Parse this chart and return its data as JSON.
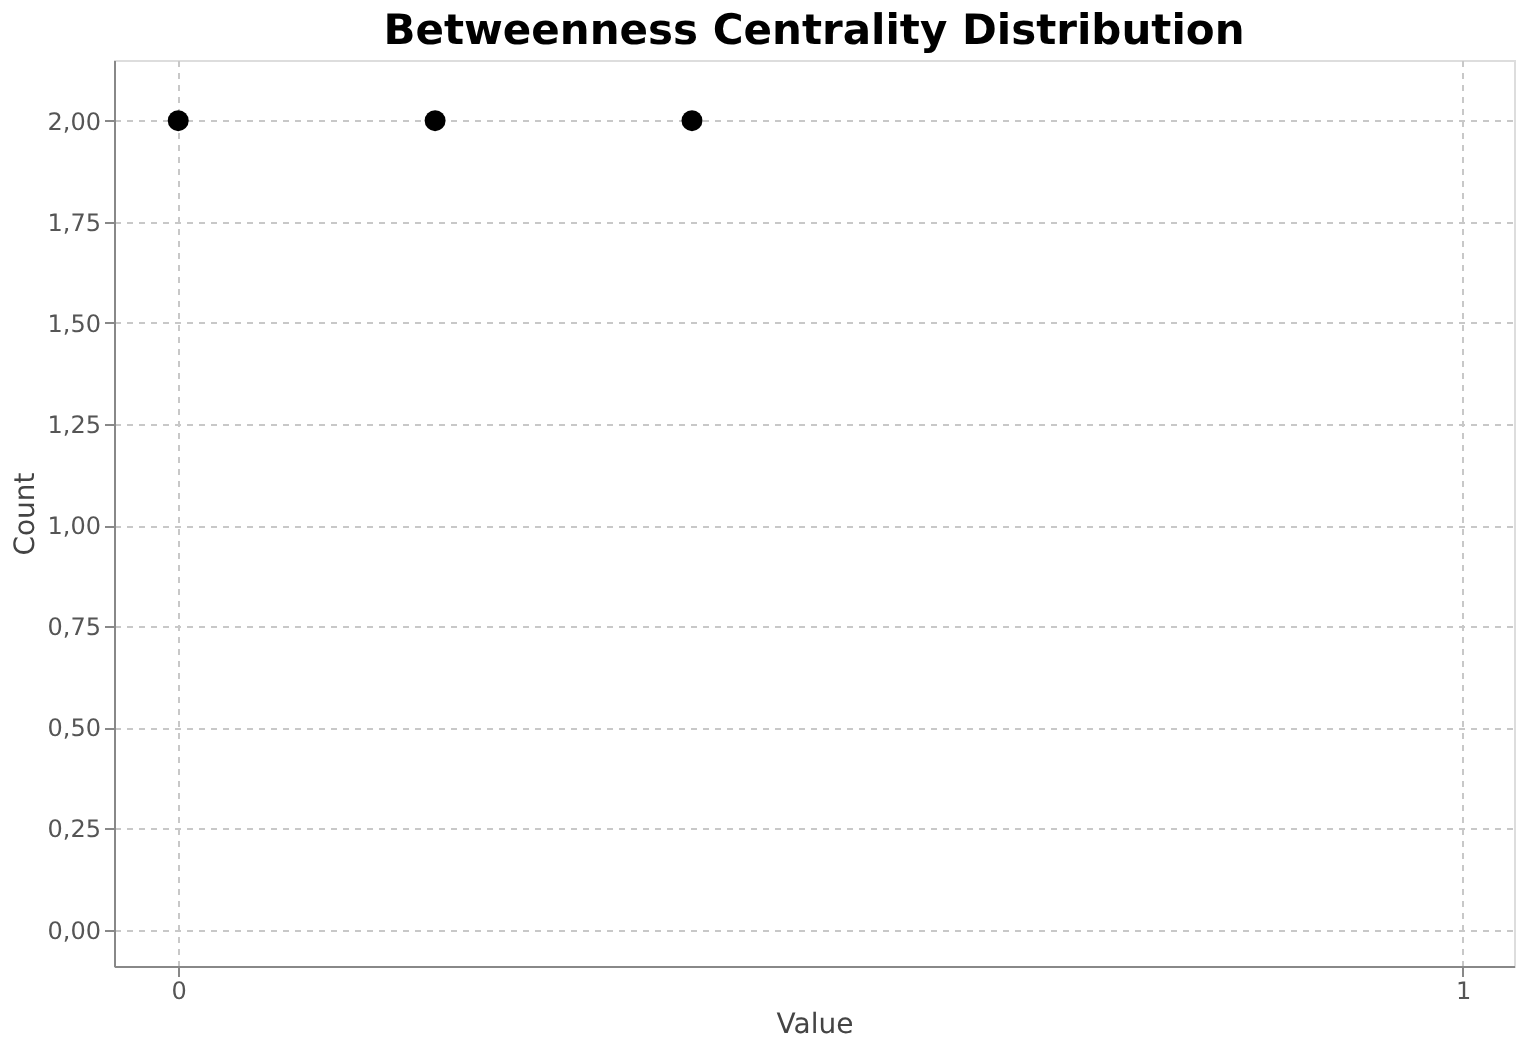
{
  "chart_data": {
    "type": "scatter",
    "title": "Betweenness Centrality Distribution",
    "xlabel": "Value",
    "ylabel": "Count",
    "x": [
      0,
      0.2,
      0.4
    ],
    "series": [
      {
        "color": "#000000",
        "values": [
          2,
          2,
          2
        ]
      }
    ],
    "xlim": [
      -0.05,
      1.04
    ],
    "ylim": [
      -0.09,
      2.15
    ],
    "xticks": [
      0,
      1
    ],
    "yticks": [
      {
        "value": 0,
        "label": "0,00"
      },
      {
        "value": 0.25,
        "label": "0,25"
      },
      {
        "value": 0.5,
        "label": "0,50"
      },
      {
        "value": 0.75,
        "label": "0,75"
      },
      {
        "value": 1,
        "label": "1,00"
      },
      {
        "value": 1.25,
        "label": "1,25"
      },
      {
        "value": 1.5,
        "label": "1,50"
      },
      {
        "value": 1.75,
        "label": "1,75"
      },
      {
        "value": 2,
        "label": "2,00"
      }
    ],
    "grid": true,
    "marker": "circle",
    "legend": false
  }
}
